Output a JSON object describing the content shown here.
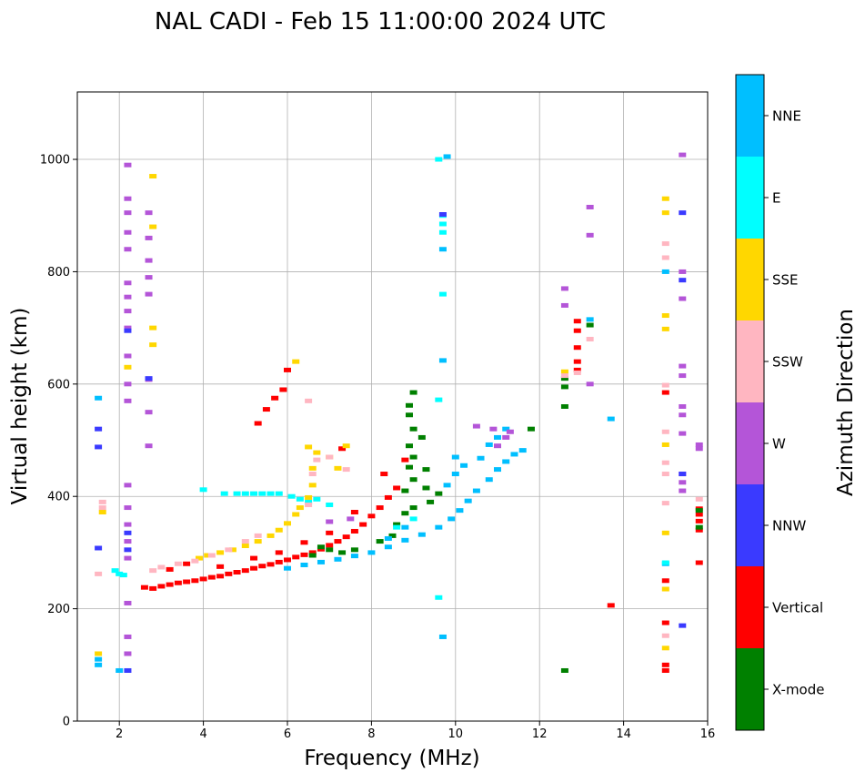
{
  "chart_data": {
    "type": "scatter",
    "title": "NAL CADI - Feb 15 11:00:00 2024 UTC",
    "xlabel": "Frequency (MHz)",
    "ylabel": "Virtual height (km)",
    "xlim": [
      1,
      16
    ],
    "ylim": [
      0,
      1120
    ],
    "xticks": [
      2,
      4,
      6,
      8,
      10,
      12,
      14,
      16
    ],
    "yticks": [
      0,
      200,
      400,
      600,
      800,
      1000
    ],
    "grid": true,
    "colorbar": {
      "label": "Azimuth Direction",
      "placement": "right",
      "categories": [
        {
          "name": "X-mode",
          "color": "#008000"
        },
        {
          "name": "Vertical",
          "color": "#ff0000"
        },
        {
          "name": "NNW",
          "color": "#3a3aff"
        },
        {
          "name": "W",
          "color": "#b455d8"
        },
        {
          "name": "SSW",
          "color": "#ffb6c1"
        },
        {
          "name": "SSE",
          "color": "#ffd700"
        },
        {
          "name": "E",
          "color": "#00ffff"
        },
        {
          "name": "NNE",
          "color": "#00bfff"
        }
      ]
    },
    "series": [
      {
        "name": "Vertical",
        "color": "#ff0000",
        "points": [
          [
            2.6,
            238
          ],
          [
            2.8,
            236
          ],
          [
            3.0,
            240
          ],
          [
            3.2,
            243
          ],
          [
            3.4,
            246
          ],
          [
            3.6,
            248
          ],
          [
            3.8,
            250
          ],
          [
            4.0,
            253
          ],
          [
            4.2,
            256
          ],
          [
            4.4,
            258
          ],
          [
            4.6,
            262
          ],
          [
            4.8,
            265
          ],
          [
            5.0,
            268
          ],
          [
            5.2,
            272
          ],
          [
            5.4,
            276
          ],
          [
            5.6,
            279
          ],
          [
            5.8,
            283
          ],
          [
            6.0,
            287
          ],
          [
            6.2,
            292
          ],
          [
            6.4,
            296
          ],
          [
            6.6,
            300
          ],
          [
            6.8,
            306
          ],
          [
            7.0,
            313
          ],
          [
            7.2,
            320
          ],
          [
            7.4,
            328
          ],
          [
            7.6,
            338
          ],
          [
            7.8,
            350
          ],
          [
            8.0,
            365
          ],
          [
            8.2,
            380
          ],
          [
            8.4,
            398
          ],
          [
            8.6,
            415
          ],
          [
            3.2,
            270
          ],
          [
            3.6,
            280
          ],
          [
            4.4,
            275
          ],
          [
            5.2,
            290
          ],
          [
            5.8,
            300
          ],
          [
            6.4,
            318
          ],
          [
            7.0,
            335
          ],
          [
            7.6,
            372
          ],
          [
            5.3,
            530
          ],
          [
            5.5,
            555
          ],
          [
            5.7,
            575
          ],
          [
            5.9,
            590
          ],
          [
            6.0,
            625
          ],
          [
            12.9,
            712
          ],
          [
            12.9,
            695
          ],
          [
            12.9,
            665
          ],
          [
            12.9,
            640
          ],
          [
            12.9,
            625
          ],
          [
            13.7,
            206
          ],
          [
            15.0,
            585
          ],
          [
            15.0,
            250
          ],
          [
            15.0,
            175
          ],
          [
            15.0,
            100
          ],
          [
            15.0,
            90
          ],
          [
            15.8,
            378
          ],
          [
            15.8,
            368
          ],
          [
            15.8,
            356
          ],
          [
            15.8,
            340
          ],
          [
            15.8,
            282
          ],
          [
            8.3,
            440
          ],
          [
            8.8,
            465
          ],
          [
            7.3,
            485
          ]
        ]
      },
      {
        "name": "X-mode",
        "color": "#008000",
        "points": [
          [
            8.6,
            350
          ],
          [
            8.8,
            370
          ],
          [
            9.0,
            380
          ],
          [
            8.8,
            410
          ],
          [
            9.0,
            430
          ],
          [
            8.9,
            452
          ],
          [
            9.0,
            470
          ],
          [
            8.9,
            490
          ],
          [
            9.0,
            520
          ],
          [
            8.9,
            545
          ],
          [
            8.9,
            562
          ],
          [
            9.0,
            585
          ],
          [
            9.2,
            505
          ],
          [
            9.3,
            448
          ],
          [
            9.3,
            415
          ],
          [
            9.4,
            390
          ],
          [
            8.5,
            330
          ],
          [
            8.2,
            320
          ],
          [
            7.6,
            305
          ],
          [
            7.3,
            300
          ],
          [
            7.0,
            305
          ],
          [
            6.8,
            310
          ],
          [
            6.6,
            295
          ],
          [
            9.6,
            405
          ],
          [
            12.6,
            610
          ],
          [
            12.6,
            595
          ],
          [
            12.6,
            560
          ],
          [
            12.6,
            90
          ],
          [
            13.2,
            705
          ],
          [
            15.8,
            375
          ],
          [
            15.8,
            345
          ],
          [
            11.8,
            520
          ]
        ]
      },
      {
        "name": "NNE",
        "color": "#00bfff",
        "points": [
          [
            6.0,
            272
          ],
          [
            6.4,
            278
          ],
          [
            6.8,
            283
          ],
          [
            7.2,
            288
          ],
          [
            7.6,
            294
          ],
          [
            8.0,
            300
          ],
          [
            8.4,
            310
          ],
          [
            8.8,
            322
          ],
          [
            9.2,
            332
          ],
          [
            9.6,
            345
          ],
          [
            9.9,
            360
          ],
          [
            10.1,
            375
          ],
          [
            10.3,
            392
          ],
          [
            10.5,
            410
          ],
          [
            10.8,
            430
          ],
          [
            11.0,
            448
          ],
          [
            11.2,
            462
          ],
          [
            11.4,
            475
          ],
          [
            11.6,
            482
          ],
          [
            9.8,
            420
          ],
          [
            10.0,
            440
          ],
          [
            10.2,
            455
          ],
          [
            10.6,
            468
          ],
          [
            10.8,
            492
          ],
          [
            11.0,
            505
          ],
          [
            11.2,
            520
          ],
          [
            10.0,
            470
          ],
          [
            1.5,
            100
          ],
          [
            1.5,
            110
          ],
          [
            1.5,
            575
          ],
          [
            2.0,
            90
          ],
          [
            9.7,
            150
          ],
          [
            9.7,
            642
          ],
          [
            9.7,
            840
          ],
          [
            9.8,
            1005
          ],
          [
            13.2,
            715
          ],
          [
            13.7,
            538
          ],
          [
            15.0,
            800
          ],
          [
            15.0,
            280
          ],
          [
            8.4,
            325
          ],
          [
            8.8,
            345
          ]
        ]
      },
      {
        "name": "E",
        "color": "#00ffff",
        "points": [
          [
            4.0,
            412
          ],
          [
            4.5,
            405
          ],
          [
            4.8,
            405
          ],
          [
            5.0,
            405
          ],
          [
            5.2,
            405
          ],
          [
            5.4,
            405
          ],
          [
            5.6,
            405
          ],
          [
            5.8,
            405
          ],
          [
            6.1,
            400
          ],
          [
            6.3,
            395
          ],
          [
            6.5,
            390
          ],
          [
            6.7,
            395
          ],
          [
            7.0,
            385
          ],
          [
            9.6,
            220
          ],
          [
            9.6,
            572
          ],
          [
            9.7,
            760
          ],
          [
            9.7,
            900
          ],
          [
            9.7,
            885
          ],
          [
            9.7,
            870
          ],
          [
            9.6,
            1000
          ],
          [
            1.9,
            268
          ],
          [
            2.0,
            262
          ],
          [
            2.1,
            260
          ],
          [
            15.0,
            282
          ],
          [
            8.6,
            345
          ],
          [
            9.0,
            360
          ]
        ]
      },
      {
        "name": "SSE",
        "color": "#ffd700",
        "points": [
          [
            3.9,
            290
          ],
          [
            4.1,
            295
          ],
          [
            4.4,
            300
          ],
          [
            4.7,
            305
          ],
          [
            5.0,
            312
          ],
          [
            5.3,
            320
          ],
          [
            5.6,
            330
          ],
          [
            5.8,
            340
          ],
          [
            6.0,
            352
          ],
          [
            6.2,
            368
          ],
          [
            6.3,
            380
          ],
          [
            6.5,
            398
          ],
          [
            6.6,
            420
          ],
          [
            6.6,
            450
          ],
          [
            6.7,
            478
          ],
          [
            6.5,
            488
          ],
          [
            7.0,
            470
          ],
          [
            7.2,
            450
          ],
          [
            7.4,
            490
          ],
          [
            2.8,
            970
          ],
          [
            2.8,
            880
          ],
          [
            2.8,
            700
          ],
          [
            2.8,
            670
          ],
          [
            2.2,
            630
          ],
          [
            6.2,
            640
          ],
          [
            15.0,
            930
          ],
          [
            15.0,
            905
          ],
          [
            15.0,
            722
          ],
          [
            15.0,
            698
          ],
          [
            15.0,
            492
          ],
          [
            15.0,
            335
          ],
          [
            15.0,
            235
          ],
          [
            15.0,
            130
          ],
          [
            12.6,
            622
          ],
          [
            1.6,
            372
          ],
          [
            1.5,
            120
          ]
        ]
      },
      {
        "name": "SSW",
        "color": "#ffb6c1",
        "points": [
          [
            2.8,
            268
          ],
          [
            3.0,
            274
          ],
          [
            3.4,
            280
          ],
          [
            3.8,
            285
          ],
          [
            4.2,
            295
          ],
          [
            4.6,
            305
          ],
          [
            5.0,
            320
          ],
          [
            5.3,
            330
          ],
          [
            6.5,
            385
          ],
          [
            6.6,
            440
          ],
          [
            6.7,
            465
          ],
          [
            6.5,
            570
          ],
          [
            7.0,
            470
          ],
          [
            7.4,
            448
          ],
          [
            1.6,
            390
          ],
          [
            1.6,
            380
          ],
          [
            15.0,
            850
          ],
          [
            15.0,
            825
          ],
          [
            15.0,
            598
          ],
          [
            15.0,
            515
          ],
          [
            15.0,
            460
          ],
          [
            15.0,
            440
          ],
          [
            15.0,
            388
          ],
          [
            15.0,
            152
          ],
          [
            15.8,
            395
          ],
          [
            13.2,
            680
          ],
          [
            12.6,
            615
          ],
          [
            12.9,
            620
          ],
          [
            1.5,
            262
          ]
        ]
      },
      {
        "name": "W",
        "color": "#b455d8",
        "points": [
          [
            2.2,
            990
          ],
          [
            2.2,
            930
          ],
          [
            2.2,
            905
          ],
          [
            2.2,
            870
          ],
          [
            2.2,
            840
          ],
          [
            2.2,
            780
          ],
          [
            2.2,
            755
          ],
          [
            2.2,
            730
          ],
          [
            2.2,
            700
          ],
          [
            2.2,
            650
          ],
          [
            2.2,
            600
          ],
          [
            2.2,
            570
          ],
          [
            2.2,
            420
          ],
          [
            2.2,
            380
          ],
          [
            2.2,
            350
          ],
          [
            2.2,
            320
          ],
          [
            2.2,
            290
          ],
          [
            2.2,
            210
          ],
          [
            2.2,
            150
          ],
          [
            2.2,
            120
          ],
          [
            2.7,
            905
          ],
          [
            2.7,
            860
          ],
          [
            2.7,
            820
          ],
          [
            2.7,
            790
          ],
          [
            2.7,
            760
          ],
          [
            2.7,
            608
          ],
          [
            2.7,
            550
          ],
          [
            2.7,
            490
          ],
          [
            12.6,
            770
          ],
          [
            12.6,
            740
          ],
          [
            13.2,
            915
          ],
          [
            13.2,
            865
          ],
          [
            13.2,
            600
          ],
          [
            15.4,
            1008
          ],
          [
            15.4,
            800
          ],
          [
            15.4,
            752
          ],
          [
            15.4,
            632
          ],
          [
            15.4,
            615
          ],
          [
            15.4,
            560
          ],
          [
            15.4,
            545
          ],
          [
            15.4,
            512
          ],
          [
            15.4,
            440
          ],
          [
            15.4,
            425
          ],
          [
            15.4,
            410
          ],
          [
            15.8,
            492
          ],
          [
            15.8,
            485
          ],
          [
            10.5,
            525
          ],
          [
            10.9,
            520
          ],
          [
            11.3,
            515
          ],
          [
            11.0,
            490
          ],
          [
            11.2,
            505
          ],
          [
            7.0,
            355
          ],
          [
            7.5,
            360
          ]
        ]
      },
      {
        "name": "NNW",
        "color": "#3a3aff",
        "points": [
          [
            2.2,
            695
          ],
          [
            2.2,
            335
          ],
          [
            2.2,
            305
          ],
          [
            2.2,
            90
          ],
          [
            1.5,
            520
          ],
          [
            1.5,
            488
          ],
          [
            1.5,
            308
          ],
          [
            15.4,
            905
          ],
          [
            15.4,
            785
          ],
          [
            15.4,
            440
          ],
          [
            15.4,
            170
          ],
          [
            2.7,
            610
          ],
          [
            9.7,
            902
          ]
        ]
      }
    ]
  }
}
